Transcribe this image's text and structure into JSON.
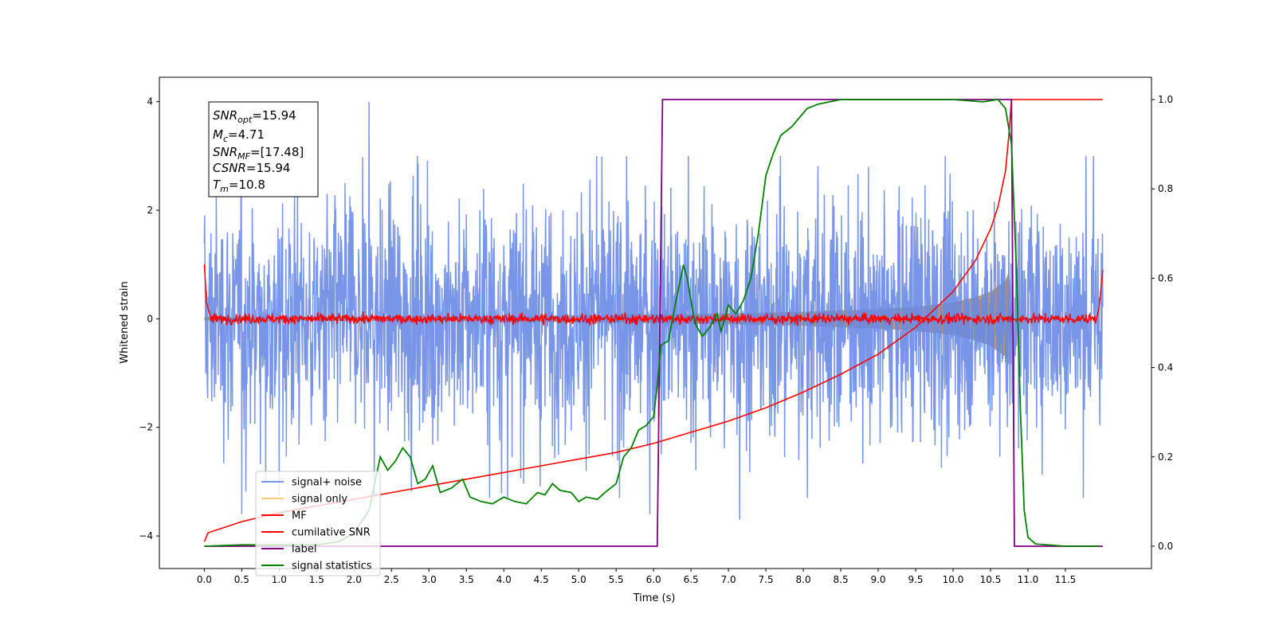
{
  "chart_data": {
    "type": "line",
    "xlabel": "Time (s)",
    "ylabel": "Whitened strain",
    "xlim": [
      -0.6,
      12.65
    ],
    "ylim_left": [
      -4.6,
      4.45
    ],
    "ylim_right": [
      -0.05,
      1.05
    ],
    "x_ticks": [
      "0.0",
      "0.5",
      "1.0",
      "1.5",
      "2.0",
      "2.5",
      "3.0",
      "3.5",
      "4.0",
      "4.5",
      "5.0",
      "5.5",
      "6.0",
      "6.5",
      "7.0",
      "7.5",
      "8.0",
      "8.5",
      "9.0",
      "9.5",
      "10.0",
      "10.5",
      "11.0",
      "11.5"
    ],
    "y_ticks_left": [
      "4",
      "2",
      "0",
      "−2",
      "−4"
    ],
    "y_ticks_right": [
      "1.0",
      "0.8",
      "0.6",
      "0.4",
      "0.2",
      "0.0"
    ],
    "grid": false,
    "legend_position": "lower-left",
    "legend": [
      "signal+ noise",
      "signal only",
      "MF",
      "cumilative SNR",
      "label",
      "signal statistics"
    ],
    "colors": {
      "signal_noise": "#6a8ae4",
      "signal_only": "#f5a623",
      "signal_fill": "#b99a74",
      "mf": "#ff0000",
      "cumulative_snr": "#ff0000",
      "label": "#800080",
      "signal_statistics": "#008000"
    },
    "stats": {
      "snr_opt": {
        "base": "SNR",
        "sub": "opt",
        "value": "=15.94"
      },
      "mc": {
        "base": "M",
        "sub": "c",
        "value": "=4.71"
      },
      "snr_mf": {
        "base": "SNR",
        "sub": "MF",
        "value": "=[17.48]"
      },
      "csnr": {
        "base": "CSNR",
        "sub": "",
        "value": "=15.94"
      },
      "tm": {
        "base": "T",
        "sub": "m",
        "value": "=10.8"
      }
    },
    "series": [
      {
        "name": "signal+ noise",
        "axis": "left",
        "x_range": [
          0,
          12
        ],
        "amplitude_approx": 1.9,
        "peaks": [
          [
            2.2,
            4.0
          ],
          [
            0.5,
            -3.6
          ],
          [
            5.95,
            -3.6
          ],
          [
            7.15,
            -3.7
          ],
          [
            1.0,
            -3.25
          ]
        ]
      },
      {
        "name": "signal only",
        "axis": "left",
        "envelope": [
          [
            0,
            0.03
          ],
          [
            2,
            0.04
          ],
          [
            4,
            0.05
          ],
          [
            6,
            0.08
          ],
          [
            7,
            0.1
          ],
          [
            8,
            0.13
          ],
          [
            9,
            0.18
          ],
          [
            9.5,
            0.22
          ],
          [
            10,
            0.3
          ],
          [
            10.3,
            0.4
          ],
          [
            10.5,
            0.5
          ],
          [
            10.6,
            0.6
          ],
          [
            10.7,
            0.7
          ],
          [
            10.75,
            0.9
          ],
          [
            10.8,
            0
          ]
        ]
      },
      {
        "name": "MF",
        "axis": "left",
        "x_range": [
          0,
          12
        ],
        "amplitude_approx": 0.1,
        "edges": [
          [
            0,
            1.0
          ],
          [
            0.05,
            0.2
          ],
          [
            12,
            0.9
          ]
        ]
      },
      {
        "name": "cumilative SNR",
        "axis": "right",
        "points": [
          [
            0,
            0.01
          ],
          [
            0.05,
            0.03
          ],
          [
            0.5,
            0.055
          ],
          [
            1,
            0.075
          ],
          [
            1.5,
            0.09
          ],
          [
            2,
            0.105
          ],
          [
            2.5,
            0.12
          ],
          [
            3,
            0.135
          ],
          [
            3.5,
            0.15
          ],
          [
            4,
            0.165
          ],
          [
            4.5,
            0.18
          ],
          [
            5,
            0.195
          ],
          [
            5.5,
            0.21
          ],
          [
            6,
            0.23
          ],
          [
            6.5,
            0.255
          ],
          [
            7,
            0.28
          ],
          [
            7.5,
            0.31
          ],
          [
            8,
            0.345
          ],
          [
            8.5,
            0.385
          ],
          [
            9,
            0.43
          ],
          [
            9.5,
            0.49
          ],
          [
            10,
            0.57
          ],
          [
            10.3,
            0.64
          ],
          [
            10.5,
            0.71
          ],
          [
            10.6,
            0.76
          ],
          [
            10.7,
            0.84
          ],
          [
            10.75,
            0.93
          ],
          [
            10.78,
            1.0
          ],
          [
            12,
            1.0
          ]
        ]
      },
      {
        "name": "label",
        "axis": "right",
        "points": [
          [
            0,
            0
          ],
          [
            6.05,
            0
          ],
          [
            6.12,
            1
          ],
          [
            10.78,
            1
          ],
          [
            10.82,
            0
          ],
          [
            12,
            0
          ]
        ]
      },
      {
        "name": "signal statistics",
        "axis": "right",
        "points": [
          [
            0,
            0.0
          ],
          [
            0.5,
            0.003
          ],
          [
            1,
            0.003
          ],
          [
            1.5,
            0.003
          ],
          [
            1.8,
            0.01
          ],
          [
            2.0,
            0.03
          ],
          [
            2.2,
            0.08
          ],
          [
            2.35,
            0.2
          ],
          [
            2.45,
            0.17
          ],
          [
            2.55,
            0.19
          ],
          [
            2.65,
            0.22
          ],
          [
            2.75,
            0.2
          ],
          [
            2.85,
            0.14
          ],
          [
            2.95,
            0.15
          ],
          [
            3.05,
            0.18
          ],
          [
            3.15,
            0.12
          ],
          [
            3.3,
            0.13
          ],
          [
            3.45,
            0.15
          ],
          [
            3.55,
            0.11
          ],
          [
            3.7,
            0.1
          ],
          [
            3.85,
            0.095
          ],
          [
            4.0,
            0.11
          ],
          [
            4.15,
            0.1
          ],
          [
            4.3,
            0.095
          ],
          [
            4.45,
            0.12
          ],
          [
            4.55,
            0.115
          ],
          [
            4.65,
            0.14
          ],
          [
            4.75,
            0.125
          ],
          [
            4.9,
            0.12
          ],
          [
            5.0,
            0.1
          ],
          [
            5.1,
            0.11
          ],
          [
            5.25,
            0.105
          ],
          [
            5.35,
            0.12
          ],
          [
            5.5,
            0.14
          ],
          [
            5.6,
            0.2
          ],
          [
            5.7,
            0.22
          ],
          [
            5.8,
            0.26
          ],
          [
            5.9,
            0.27
          ],
          [
            6.0,
            0.29
          ],
          [
            6.05,
            0.36
          ],
          [
            6.1,
            0.45
          ],
          [
            6.2,
            0.46
          ],
          [
            6.3,
            0.55
          ],
          [
            6.4,
            0.63
          ],
          [
            6.45,
            0.6
          ],
          [
            6.55,
            0.5
          ],
          [
            6.65,
            0.47
          ],
          [
            6.75,
            0.49
          ],
          [
            6.85,
            0.52
          ],
          [
            6.9,
            0.48
          ],
          [
            7.0,
            0.54
          ],
          [
            7.1,
            0.52
          ],
          [
            7.2,
            0.55
          ],
          [
            7.3,
            0.6
          ],
          [
            7.4,
            0.7
          ],
          [
            7.5,
            0.83
          ],
          [
            7.6,
            0.88
          ],
          [
            7.7,
            0.92
          ],
          [
            7.85,
            0.94
          ],
          [
            7.95,
            0.96
          ],
          [
            8.05,
            0.98
          ],
          [
            8.2,
            0.99
          ],
          [
            8.5,
            1.0
          ],
          [
            9.0,
            1.0
          ],
          [
            9.5,
            1.0
          ],
          [
            10.0,
            1.0
          ],
          [
            10.4,
            0.995
          ],
          [
            10.6,
            1.0
          ],
          [
            10.7,
            0.98
          ],
          [
            10.78,
            0.9
          ],
          [
            10.85,
            0.6
          ],
          [
            10.9,
            0.3
          ],
          [
            10.95,
            0.08
          ],
          [
            11.0,
            0.02
          ],
          [
            11.1,
            0.005
          ],
          [
            11.5,
            0.0
          ],
          [
            11.95,
            0.0
          ]
        ]
      }
    ]
  }
}
